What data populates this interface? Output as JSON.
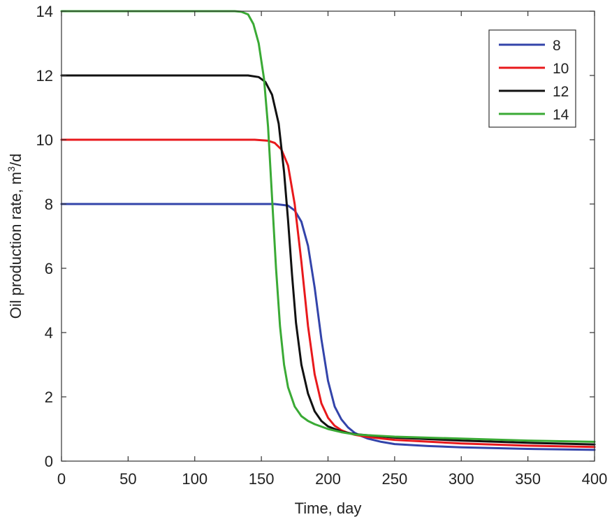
{
  "chart_data": {
    "type": "line",
    "title": "",
    "xlabel": "Time, day",
    "ylabel": "Oil production rate, m",
    "ylabel_sup": "3",
    "ylabel_tail": "/d",
    "xlim": [
      0,
      400
    ],
    "ylim": [
      0,
      14
    ],
    "xticks": [
      0,
      50,
      100,
      150,
      200,
      250,
      300,
      350,
      400
    ],
    "yticks": [
      0,
      2,
      4,
      6,
      8,
      10,
      12,
      14
    ],
    "grid": false,
    "legend_position": "top-right",
    "series": [
      {
        "name": "8",
        "color": "#3344aa",
        "x": [
          0,
          150,
          160,
          170,
          175,
          180,
          185,
          190,
          195,
          200,
          205,
          210,
          215,
          220,
          225,
          230,
          240,
          250,
          275,
          300,
          350,
          400
        ],
        "y": [
          8,
          8,
          8.0,
          7.95,
          7.8,
          7.45,
          6.7,
          5.4,
          3.8,
          2.5,
          1.7,
          1.3,
          1.05,
          0.88,
          0.78,
          0.7,
          0.6,
          0.53,
          0.47,
          0.43,
          0.38,
          0.35
        ]
      },
      {
        "name": "10",
        "color": "#e8191c",
        "x": [
          0,
          145,
          155,
          160,
          165,
          170,
          175,
          180,
          185,
          190,
          195,
          200,
          205,
          210,
          215,
          220,
          230,
          250,
          300,
          350,
          400
        ],
        "y": [
          10,
          10,
          9.97,
          9.9,
          9.7,
          9.2,
          8.0,
          6.2,
          4.2,
          2.7,
          1.8,
          1.35,
          1.1,
          0.96,
          0.88,
          0.82,
          0.75,
          0.66,
          0.55,
          0.48,
          0.44
        ]
      },
      {
        "name": "12",
        "color": "#111111",
        "x": [
          0,
          140,
          148,
          153,
          158,
          163,
          167,
          170,
          173,
          176,
          180,
          185,
          190,
          195,
          200,
          210,
          220,
          250,
          300,
          350,
          400
        ],
        "y": [
          12,
          12,
          11.95,
          11.8,
          11.4,
          10.5,
          9.0,
          7.5,
          5.8,
          4.3,
          3.0,
          2.1,
          1.55,
          1.25,
          1.08,
          0.92,
          0.84,
          0.73,
          0.64,
          0.57,
          0.52
        ]
      },
      {
        "name": "14",
        "color": "#3aaa35",
        "x": [
          0,
          130,
          135,
          140,
          144,
          148,
          152,
          155,
          158,
          161,
          164,
          167,
          170,
          175,
          180,
          185,
          190,
          200,
          210,
          220,
          250,
          300,
          350,
          400
        ],
        "y": [
          14,
          14,
          13.98,
          13.9,
          13.6,
          13.0,
          11.9,
          10.4,
          8.2,
          6.0,
          4.2,
          3.0,
          2.3,
          1.7,
          1.4,
          1.25,
          1.15,
          1.0,
          0.9,
          0.83,
          0.76,
          0.7,
          0.64,
          0.6
        ]
      }
    ]
  }
}
